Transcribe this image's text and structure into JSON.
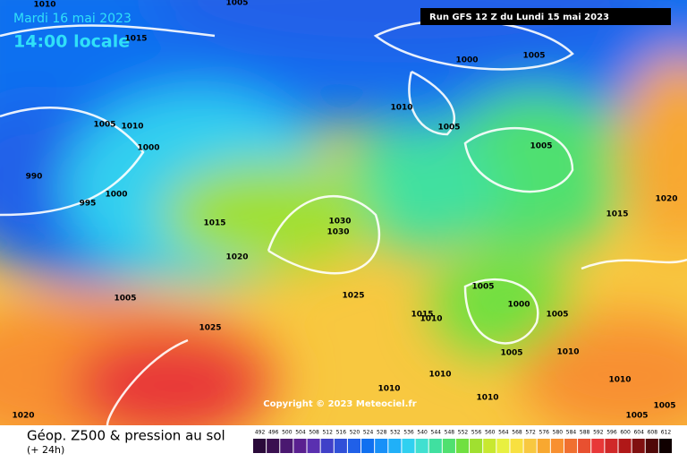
{
  "header": {
    "date": "Mardi 16 mai 2023",
    "time": "14:00 locale",
    "run": "Run GFS 12 Z du Lundi 15 mai 2023"
  },
  "isobar_labels": [
    "1010",
    "1005",
    "1015",
    "1000",
    "1005",
    "1010",
    "1005",
    "1010",
    "1000",
    "1005",
    "1005",
    "990",
    "995",
    "1000",
    "1015",
    "1030",
    "1030",
    "1015",
    "1020",
    "1020",
    "1025",
    "1005",
    "1005",
    "1000",
    "1005",
    "1015",
    "1010",
    "1025",
    "1005",
    "1010",
    "1010",
    "1010",
    "1010",
    "1010",
    "1005",
    "1005",
    "1020"
  ],
  "copyright": "Copyright © 2023 Meteociel.fr",
  "footer": {
    "title": "Géop. Z500 & pression au sol",
    "subtitle": "(+ 24h)"
  },
  "legend": {
    "ticks": [
      492,
      496,
      500,
      504,
      508,
      512,
      516,
      520,
      524,
      528,
      532,
      536,
      540,
      544,
      548,
      552,
      556,
      560,
      564,
      568,
      572,
      576,
      580,
      584,
      588,
      592,
      596,
      600,
      604,
      608,
      612
    ],
    "colors": [
      "#2a0a3a",
      "#3a1050",
      "#4a1870",
      "#5a2090",
      "#5a30b0",
      "#4040c8",
      "#3050d8",
      "#2060e8",
      "#1070f0",
      "#1890f8",
      "#20b0f8",
      "#30d0f0",
      "#40e0d0",
      "#40e0a0",
      "#50e070",
      "#70e040",
      "#a0e030",
      "#c8e830",
      "#e8f040",
      "#f8e040",
      "#f8c840",
      "#f8a830",
      "#f89030",
      "#f07030",
      "#e85030",
      "#e83838",
      "#d02828",
      "#b01818",
      "#801010",
      "#500808",
      "#100000"
    ]
  }
}
